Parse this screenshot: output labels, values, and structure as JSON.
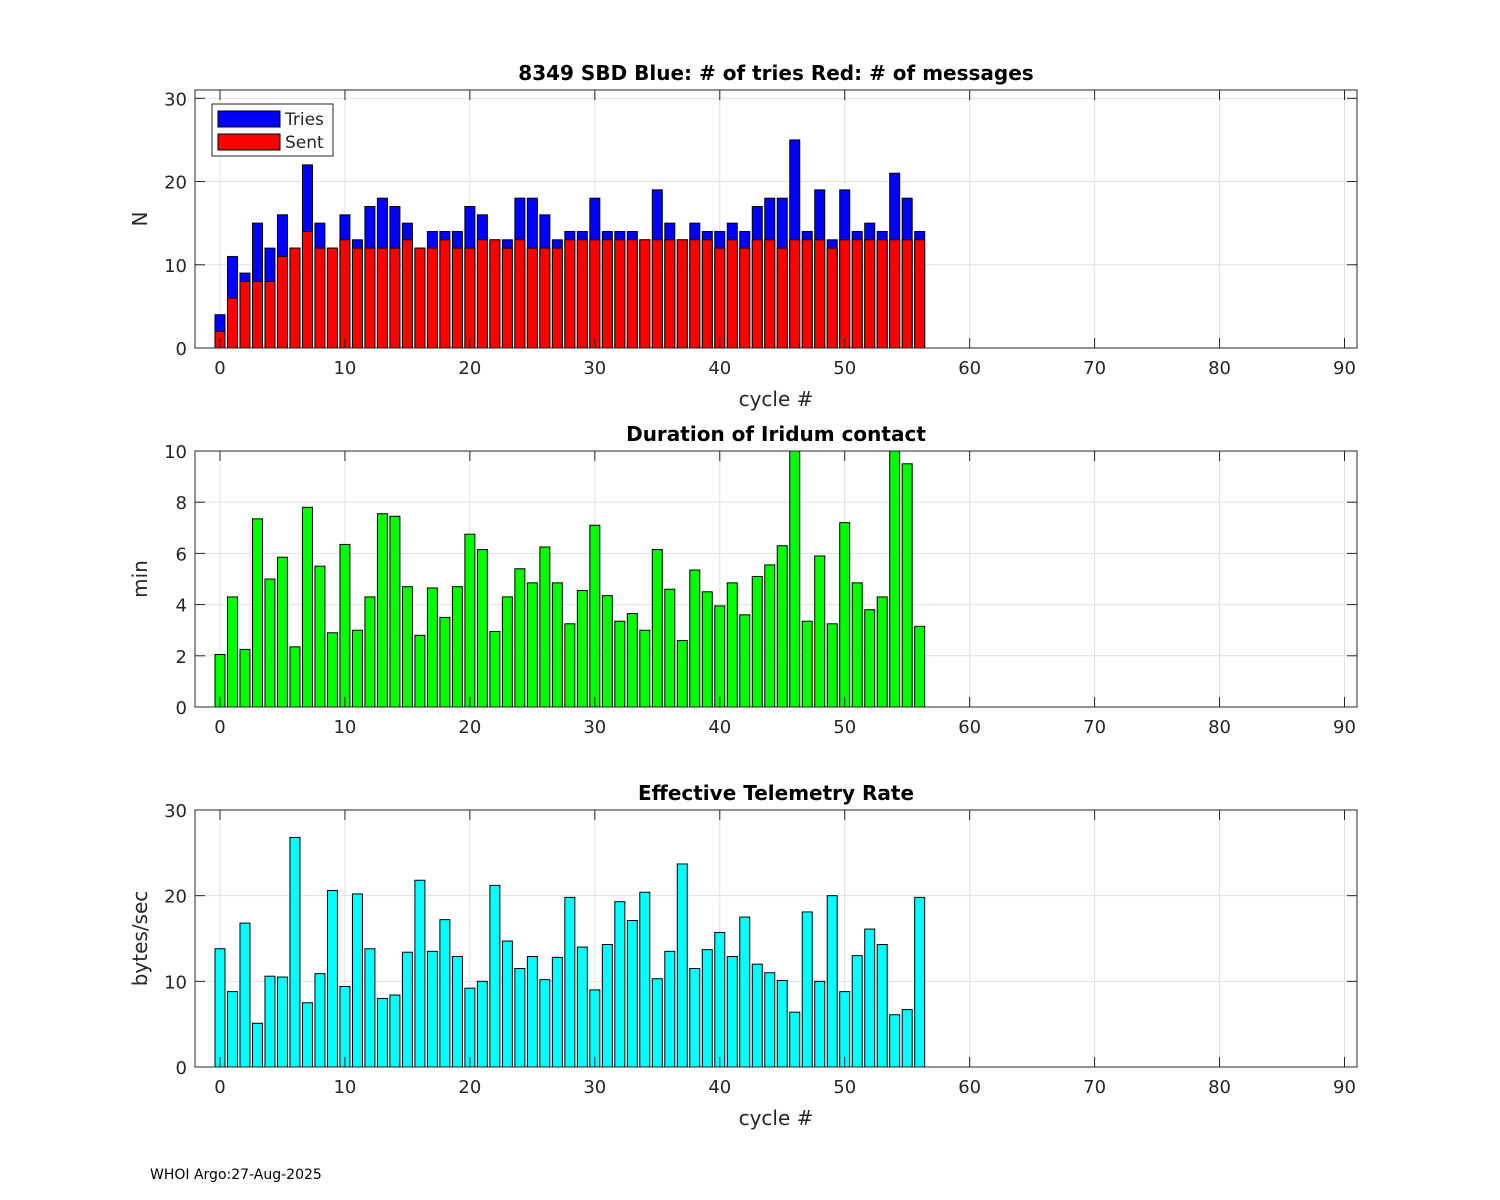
{
  "footer": "WHOI Argo:27-Aug-2025",
  "chart_data": [
    {
      "type": "bar",
      "stacked": "overlay",
      "title": "8349 SBD  Blue: # of tries   Red: # of messages",
      "xlabel": "cycle #",
      "ylabel": "N",
      "xlim": [
        -2,
        91
      ],
      "ylim": [
        0,
        31
      ],
      "xticks": [
        0,
        10,
        20,
        30,
        40,
        50,
        60,
        70,
        80,
        90
      ],
      "yticks": [
        0,
        10,
        20,
        30
      ],
      "grid": true,
      "legend": {
        "placement": "top-left",
        "entries": [
          "Tries",
          "Sent"
        ]
      },
      "x": [
        0,
        1,
        2,
        3,
        4,
        5,
        6,
        7,
        8,
        9,
        10,
        11,
        12,
        13,
        14,
        15,
        16,
        17,
        18,
        19,
        20,
        21,
        22,
        23,
        24,
        25,
        26,
        27,
        28,
        29,
        30,
        31,
        32,
        33,
        34,
        35,
        36,
        37,
        38,
        39,
        40,
        41,
        42,
        43,
        44,
        45,
        46,
        47,
        48,
        49,
        50,
        51,
        52,
        53,
        54,
        55,
        56
      ],
      "series": [
        {
          "name": "Tries",
          "color": "#0000ff",
          "values": [
            4,
            11,
            9,
            15,
            12,
            16,
            12,
            22,
            15,
            12,
            16,
            13,
            17,
            18,
            17,
            15,
            12,
            14,
            14,
            14,
            17,
            16,
            13,
            13,
            18,
            18,
            16,
            13,
            14,
            14,
            18,
            14,
            14,
            14,
            13,
            19,
            15,
            13,
            15,
            14,
            14,
            15,
            14,
            17,
            18,
            18,
            25,
            14,
            19,
            13,
            19,
            14,
            15,
            14,
            21,
            18,
            14
          ]
        },
        {
          "name": "Sent",
          "color": "#ff0000",
          "values": [
            2,
            6,
            8,
            8,
            8,
            11,
            12,
            14,
            12,
            12,
            13,
            12,
            12,
            12,
            12,
            13,
            12,
            12,
            13,
            12,
            12,
            13,
            13,
            12,
            13,
            12,
            12,
            12,
            13,
            13,
            13,
            13,
            13,
            13,
            13,
            13,
            13,
            13,
            13,
            13,
            12,
            13,
            12,
            13,
            13,
            12,
            13,
            13,
            13,
            12,
            13,
            13,
            13,
            13,
            13,
            13,
            13
          ]
        }
      ]
    },
    {
      "type": "bar",
      "title": "Duration of Iridum contact",
      "xlabel": "",
      "ylabel": "min",
      "xlim": [
        -2,
        91
      ],
      "ylim": [
        0,
        10
      ],
      "xticks": [
        0,
        10,
        20,
        30,
        40,
        50,
        60,
        70,
        80,
        90
      ],
      "yticks": [
        0,
        2,
        4,
        6,
        8,
        10
      ],
      "grid": true,
      "color": "#00ff00",
      "x": [
        0,
        1,
        2,
        3,
        4,
        5,
        6,
        7,
        8,
        9,
        10,
        11,
        12,
        13,
        14,
        15,
        16,
        17,
        18,
        19,
        20,
        21,
        22,
        23,
        24,
        25,
        26,
        27,
        28,
        29,
        30,
        31,
        32,
        33,
        34,
        35,
        36,
        37,
        38,
        39,
        40,
        41,
        42,
        43,
        44,
        45,
        46,
        47,
        48,
        49,
        50,
        51,
        52,
        53,
        54,
        55,
        56
      ],
      "values": [
        2.05,
        4.3,
        2.25,
        7.35,
        5.0,
        5.85,
        2.35,
        7.8,
        5.5,
        2.9,
        6.35,
        3.0,
        4.3,
        7.55,
        7.45,
        4.7,
        2.8,
        4.65,
        3.5,
        4.7,
        6.75,
        6.15,
        2.95,
        4.3,
        5.4,
        4.85,
        6.25,
        4.85,
        3.25,
        4.55,
        7.1,
        4.35,
        3.35,
        3.65,
        3.0,
        6.15,
        4.6,
        2.6,
        5.35,
        4.5,
        3.95,
        4.85,
        3.6,
        5.1,
        5.55,
        6.3,
        10.5,
        3.35,
        5.9,
        3.25,
        7.2,
        4.85,
        3.8,
        4.3,
        10.5,
        9.5,
        3.15
      ]
    },
    {
      "type": "bar",
      "title": "Effective Telemetry Rate",
      "xlabel": "cycle #",
      "ylabel": "bytes/sec",
      "xlim": [
        -2,
        91
      ],
      "ylim": [
        0,
        30
      ],
      "xticks": [
        0,
        10,
        20,
        30,
        40,
        50,
        60,
        70,
        80,
        90
      ],
      "yticks": [
        0,
        10,
        20,
        30
      ],
      "grid": true,
      "color": "#00ffff",
      "x": [
        0,
        1,
        2,
        3,
        4,
        5,
        6,
        7,
        8,
        9,
        10,
        11,
        12,
        13,
        14,
        15,
        16,
        17,
        18,
        19,
        20,
        21,
        22,
        23,
        24,
        25,
        26,
        27,
        28,
        29,
        30,
        31,
        32,
        33,
        34,
        35,
        36,
        37,
        38,
        39,
        40,
        41,
        42,
        43,
        44,
        45,
        46,
        47,
        48,
        49,
        50,
        51,
        52,
        53,
        54,
        55,
        56
      ],
      "values": [
        13.8,
        8.8,
        16.8,
        5.1,
        10.6,
        10.5,
        26.8,
        7.5,
        10.9,
        20.6,
        9.4,
        20.2,
        13.8,
        8.0,
        8.4,
        13.4,
        21.8,
        13.5,
        17.2,
        12.9,
        9.2,
        10.0,
        21.2,
        14.7,
        11.5,
        12.9,
        10.2,
        12.8,
        19.8,
        14.0,
        9.0,
        14.3,
        19.3,
        17.1,
        20.4,
        10.3,
        13.5,
        23.7,
        11.5,
        13.7,
        15.7,
        12.9,
        17.5,
        12.0,
        11.0,
        10.1,
        6.4,
        18.1,
        10.0,
        20.0,
        8.8,
        13.0,
        16.1,
        14.3,
        6.1,
        6.7,
        19.8
      ]
    }
  ]
}
